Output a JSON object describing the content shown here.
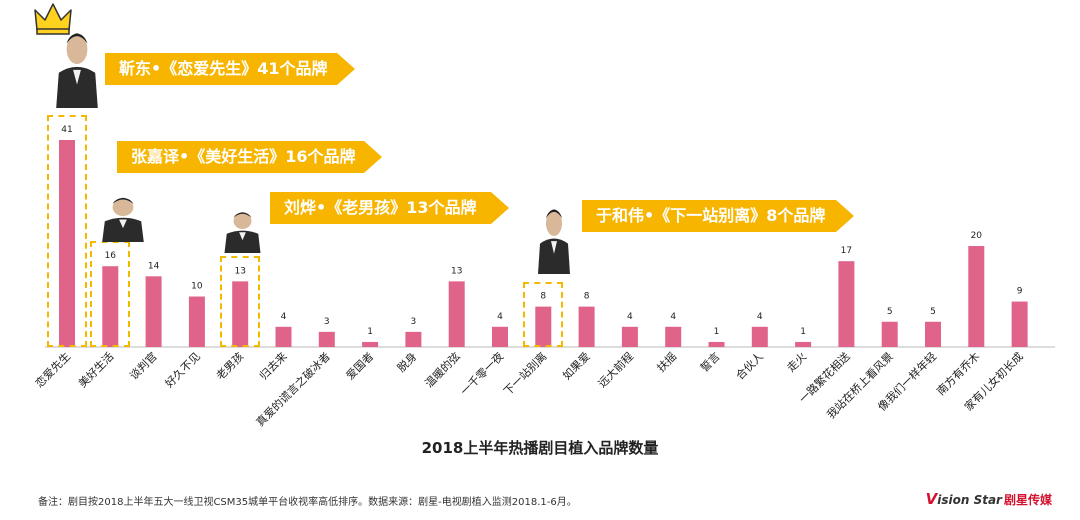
{
  "chart_data": {
    "type": "bar",
    "title": "2018上半年热播剧目植入品牌数量",
    "categories": [
      "恋爱先生",
      "美好生活",
      "谈判官",
      "好久不见",
      "老男孩",
      "归去来",
      "真爱的谎言之破冰者",
      "爱国者",
      "脱身",
      "温暖的弦",
      "一千零一夜",
      "下一站别离",
      "如果爱",
      "远大前程",
      "扶摇",
      "誓言",
      "合伙人",
      "走火",
      "一路繁花相送",
      "我站在桥上看风景",
      "像我们一样年轻",
      "南方有乔木",
      "家有儿女初长成"
    ],
    "values": [
      41,
      16,
      14,
      10,
      13,
      4,
      3,
      1,
      3,
      13,
      4,
      8,
      8,
      4,
      4,
      1,
      4,
      1,
      17,
      5,
      5,
      20,
      9
    ],
    "ylim": [
      0,
      41
    ],
    "grid": false,
    "bar_color": "#e06489",
    "highlighted": [
      "恋爱先生",
      "美好生活",
      "老男孩",
      "下一站别离"
    ]
  },
  "callouts": [
    {
      "text": "靳东•《恋爱先生》41个品牌",
      "category": "恋爱先生"
    },
    {
      "text": "张嘉译•《美好生活》16个品牌",
      "category": "美好生活"
    },
    {
      "text": "刘烨•《老男孩》13个品牌",
      "category": "老男孩"
    },
    {
      "text": "于和伟•《下一站别离》8个品牌",
      "category": "下一站别离"
    }
  ],
  "colors": {
    "callout": "#f7b500",
    "highlight_border": "#f5b800",
    "axis": "#bbbbbb"
  },
  "footnote": "备注：剧目按2018上半年五大一线卫视CSM35城单平台收视率高低排序。数据来源：剧星-电视剧植入监测2018.1-6月。",
  "logo": {
    "mark": "V",
    "text": "ision Star",
    "cn": "剧星传媒"
  }
}
